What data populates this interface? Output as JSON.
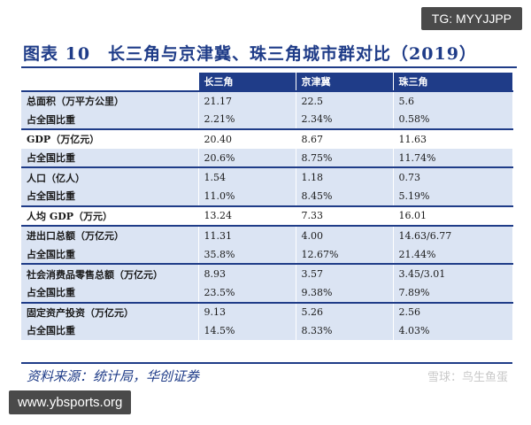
{
  "tg_badge": "TG: MYYJJPP",
  "title": "图表 10　长三角与京津冀、珠三角城市群对比（2019）",
  "table": {
    "headers": [
      "",
      "长三角",
      "京津冀",
      "珠三角"
    ],
    "rows": [
      [
        "总面积（万平方公里）",
        "21.17",
        "22.5",
        "5.6"
      ],
      [
        "占全国比重",
        "2.21%",
        "2.34%",
        "0.58%"
      ],
      [
        "GDP（万亿元）",
        "20.40",
        "8.67",
        "11.63"
      ],
      [
        "占全国比重",
        "20.6%",
        "8.75%",
        "11.74%"
      ],
      [
        "人口（亿人）",
        "1.54",
        "1.18",
        "0.73"
      ],
      [
        "占全国比重",
        "11.0%",
        "8.45%",
        "5.19%"
      ],
      [
        "人均 GDP（万元）",
        "13.24",
        "7.33",
        "16.01"
      ],
      [
        "进出口总额（万亿元）",
        "11.31",
        "4.00",
        "14.63/6.77"
      ],
      [
        "占全国比重",
        "35.8%",
        "12.67%",
        "21.44%"
      ],
      [
        "社会消费品零售总额（万亿元）",
        "8.93",
        "3.57",
        "3.45/3.01"
      ],
      [
        "占全国比重",
        "23.5%",
        "9.38%",
        "7.89%"
      ],
      [
        "固定资产投资（万亿元）",
        "9.13",
        "5.26",
        "2.56"
      ],
      [
        "占全国比重",
        "14.5%",
        "8.33%",
        "4.03%"
      ]
    ]
  },
  "source": "资料来源：统计局，华创证券",
  "watermark": "雪球：鸟生鱼蛋",
  "url_badge": "www.ybsports.org"
}
